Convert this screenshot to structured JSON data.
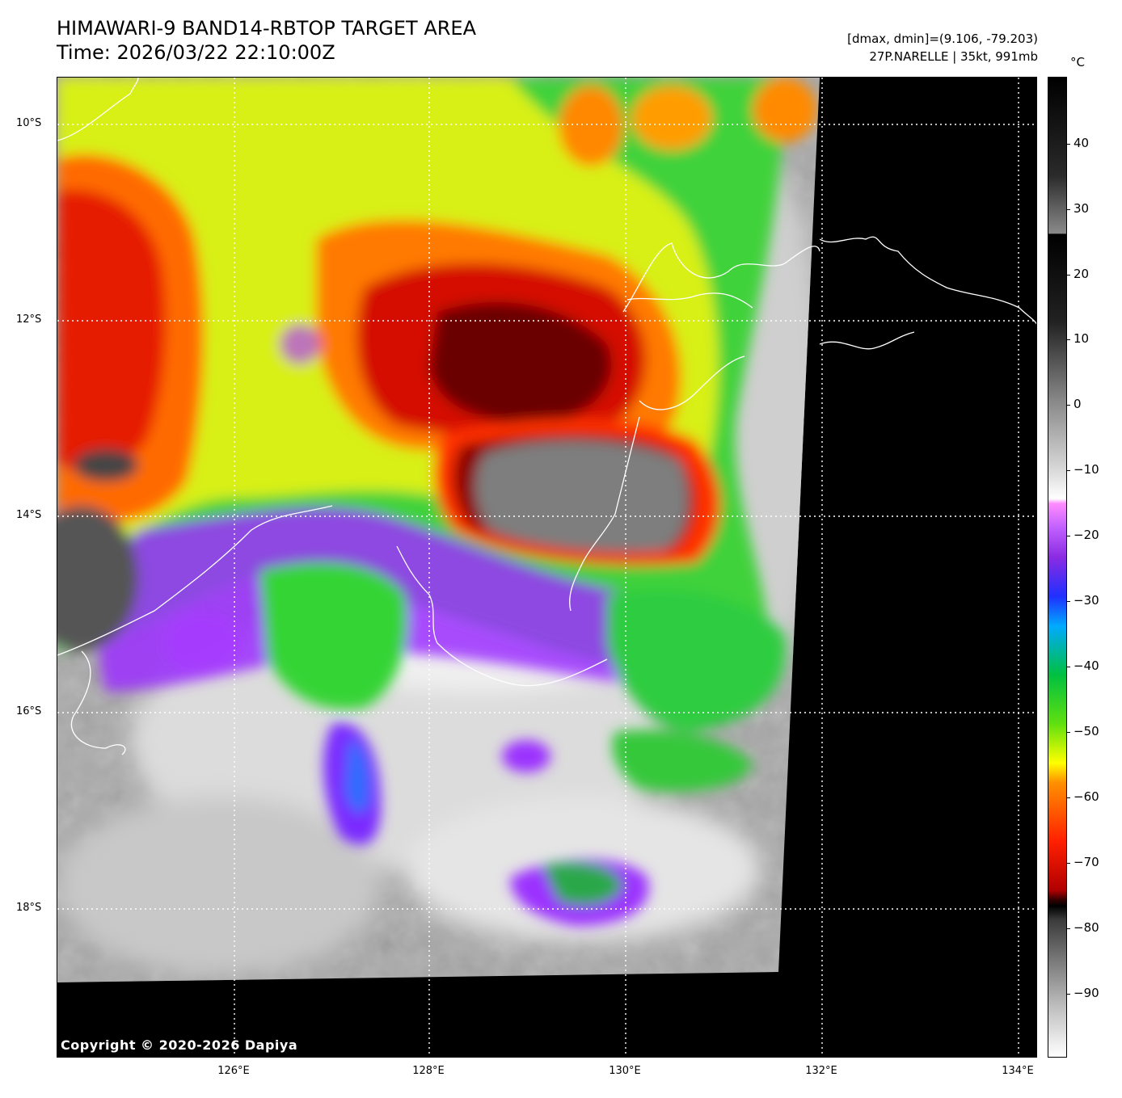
{
  "title": {
    "line1": "HIMAWARI-9 BAND14-RBTOP TARGET AREA",
    "line2": "Time: 2026/03/22 22:10:00Z"
  },
  "info": {
    "dmax_dmin": "[dmax, dmin]=(9.106, -79.203)",
    "storm": "27P.NARELLE | 35kt, 991mb"
  },
  "copyright": "Copyright © 2020-2026 Dapiya",
  "lat_labels": [
    "10°S",
    "12°S",
    "14°S",
    "16°S",
    "18°S"
  ],
  "lon_labels": [
    "126°E",
    "128°E",
    "130°E",
    "132°E",
    "134°E"
  ],
  "colorbar": {
    "unit": "°C",
    "ticks": [
      "40",
      "30",
      "20",
      "10",
      "0",
      "−10",
      "−20",
      "−30",
      "−40",
      "−50",
      "−60",
      "−70",
      "−80",
      "−90"
    ]
  }
}
